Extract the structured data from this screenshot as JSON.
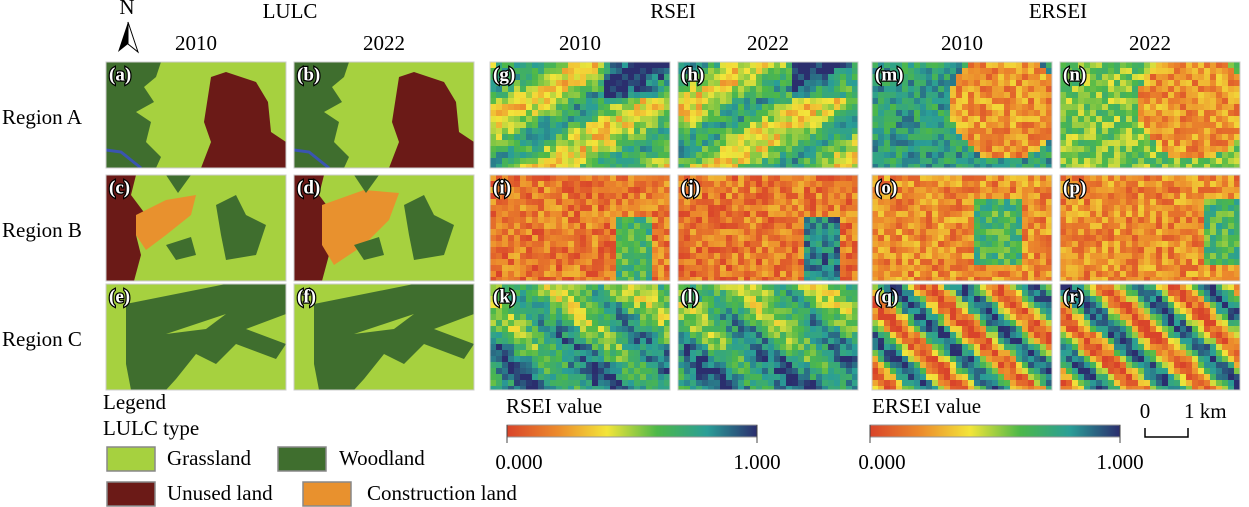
{
  "north": "N",
  "groups": [
    {
      "title": "LULC",
      "years": [
        "2010",
        "2022"
      ]
    },
    {
      "title": "RSEI",
      "years": [
        "2010",
        "2022"
      ]
    },
    {
      "title": "ERSEI",
      "years": [
        "2010",
        "2022"
      ]
    }
  ],
  "rows": [
    "Region A",
    "Region B",
    "Region C"
  ],
  "panels": [
    [
      "(a)",
      "(b)",
      "(g)",
      "(h)",
      "(m)",
      "(n)"
    ],
    [
      "(c)",
      "(d)",
      "(i)",
      "(j)",
      "(o)",
      "(p)"
    ],
    [
      "(e)",
      "(f)",
      "(k)",
      "(l)",
      "(q)",
      "(r)"
    ]
  ],
  "legend": {
    "title": "Legend",
    "subtitle": "LULC type",
    "items": [
      {
        "label": "Grassland",
        "color": "#a6d13f"
      },
      {
        "label": "Woodland",
        "color": "#3f6e2e"
      },
      {
        "label": "Unused land",
        "color": "#6b1a17"
      },
      {
        "label": "Construction land",
        "color": "#e8912e"
      }
    ]
  },
  "colorbars": [
    {
      "title": "RSEI value",
      "min": "0.000",
      "max": "1.000",
      "colors": [
        "#d9442a",
        "#ec8a2c",
        "#f3e53a",
        "#4db849",
        "#2a9e97",
        "#2b2d6e"
      ]
    },
    {
      "title": "ERSEI value",
      "min": "0.000",
      "max": "1.000",
      "colors": [
        "#d9442a",
        "#ec8a2c",
        "#f3e53a",
        "#4db849",
        "#2a9e97",
        "#2b2d6e"
      ]
    }
  ],
  "scale_bar": {
    "start": "0",
    "end": "1 km"
  }
}
